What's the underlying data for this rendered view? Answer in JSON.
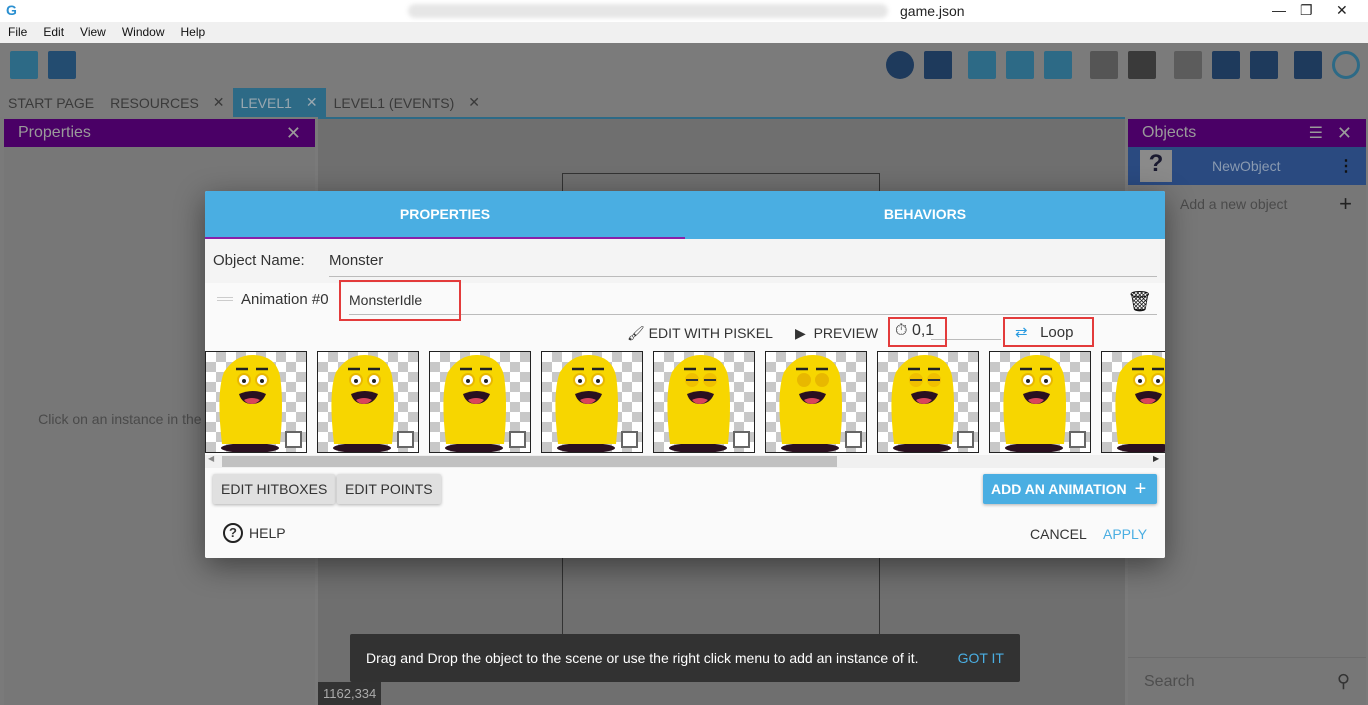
{
  "window": {
    "title": "game.json",
    "minimize": "—",
    "maximize": "❐",
    "close": "✕"
  },
  "menu": [
    "File",
    "Edit",
    "View",
    "Window",
    "Help"
  ],
  "tabs": [
    {
      "label": "START PAGE",
      "closable": false
    },
    {
      "label": "RESOURCES",
      "closable": true
    },
    {
      "label": "LEVEL1",
      "closable": true,
      "active": true
    },
    {
      "label": "LEVEL1 (EVENTS)",
      "closable": true
    }
  ],
  "left_panel": {
    "title": "Properties",
    "empty_text": "Click on an instance in the scene to display its properties"
  },
  "right_panel": {
    "title": "Objects",
    "object": "NewObject",
    "add_label": "Add a new object",
    "search_placeholder": "Search"
  },
  "dialog": {
    "tabs": [
      "PROPERTIES",
      "BEHAVIORS"
    ],
    "object_name_label": "Object Name:",
    "object_name": "Monster",
    "animation_label": "Animation #0",
    "animation_name": "MonsterIdle",
    "edit_piskel": "EDIT WITH PISKEL",
    "preview": "PREVIEW",
    "timing": "0,1",
    "loop": "Loop",
    "frames": [
      "open",
      "open",
      "open",
      "open",
      "squint",
      "closed",
      "squint",
      "open",
      "open"
    ],
    "edit_hitboxes": "EDIT HITBOXES",
    "edit_points": "EDIT POINTS",
    "add_animation": "ADD AN ANIMATION",
    "help": "HELP",
    "cancel": "CANCEL",
    "apply": "APPLY"
  },
  "snackbar": {
    "text": "Drag and Drop the object to the scene or use the right click menu to add an instance of it.",
    "action": "GOT IT"
  },
  "coords": "1162,334",
  "colors": {
    "accent": "#4aaee2",
    "panel_header": "#4a0066",
    "highlight": "#e33b3b"
  }
}
